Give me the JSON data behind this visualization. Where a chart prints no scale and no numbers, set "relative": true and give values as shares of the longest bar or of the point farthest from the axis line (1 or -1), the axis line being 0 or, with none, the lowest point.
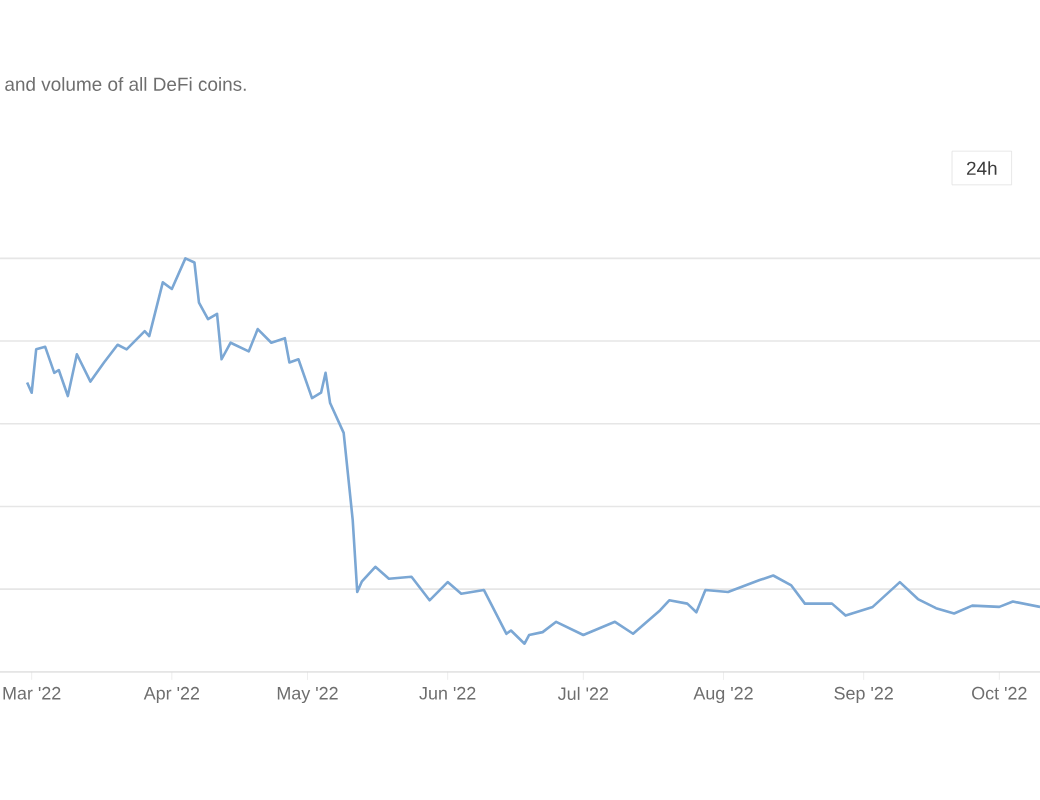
{
  "chart_data": {
    "type": "line",
    "subtitle": "and volume of all DeFi coins.",
    "annotations": [
      "24h"
    ],
    "relative": true,
    "grid": "y",
    "marker": "none",
    "line_style": "solid",
    "xlim": [
      "2022-02-22",
      "2022-10-10"
    ],
    "xticks": [
      {
        "value": "2022-03-01",
        "label": "Mar '22"
      },
      {
        "value": "2022-04-01",
        "label": "Apr '22"
      },
      {
        "value": "2022-05-01",
        "label": "May '22"
      },
      {
        "value": "2022-06-01",
        "label": "Jun '22"
      },
      {
        "value": "2022-07-01",
        "label": "Jul '22"
      },
      {
        "value": "2022-08-01",
        "label": "Aug '22"
      },
      {
        "value": "2022-09-01",
        "label": "Sep '22"
      },
      {
        "value": "2022-10-01",
        "label": "Oct '22"
      }
    ],
    "x": [
      "2022-02-28",
      "2022-03-01",
      "2022-03-02",
      "2022-03-04",
      "2022-03-06",
      "2022-03-07",
      "2022-03-09",
      "2022-03-11",
      "2022-03-14",
      "2022-03-17",
      "2022-03-20",
      "2022-03-22",
      "2022-03-26",
      "2022-03-27",
      "2022-03-30",
      "2022-04-01",
      "2022-04-04",
      "2022-04-06",
      "2022-04-07",
      "2022-04-09",
      "2022-04-11",
      "2022-04-12",
      "2022-04-14",
      "2022-04-18",
      "2022-04-20",
      "2022-04-23",
      "2022-04-26",
      "2022-04-27",
      "2022-04-29",
      "2022-05-02",
      "2022-05-04",
      "2022-05-05",
      "2022-05-06",
      "2022-05-09",
      "2022-05-11",
      "2022-05-12",
      "2022-05-13",
      "2022-05-16",
      "2022-05-19",
      "2022-05-24",
      "2022-05-28",
      "2022-06-01",
      "2022-06-04",
      "2022-06-09",
      "2022-06-14",
      "2022-06-15",
      "2022-06-18",
      "2022-06-19",
      "2022-06-22",
      "2022-06-25",
      "2022-07-01",
      "2022-07-08",
      "2022-07-12",
      "2022-07-18",
      "2022-07-20",
      "2022-07-24",
      "2022-07-26",
      "2022-07-28",
      "2022-08-02",
      "2022-08-09",
      "2022-08-12",
      "2022-08-16",
      "2022-08-19",
      "2022-08-25",
      "2022-08-28",
      "2022-09-03",
      "2022-09-09",
      "2022-09-13",
      "2022-09-17",
      "2022-09-21",
      "2022-09-25",
      "2022-10-01",
      "2022-10-04",
      "2022-10-10"
    ],
    "series": [
      {
        "color": "#7ba7d4",
        "values": [
          0.7,
          0.675,
          0.78,
          0.786,
          0.723,
          0.73,
          0.667,
          0.768,
          0.702,
          0.748,
          0.791,
          0.78,
          0.824,
          0.812,
          0.942,
          0.926,
          1.0,
          0.99,
          0.893,
          0.853,
          0.866,
          0.756,
          0.796,
          0.775,
          0.829,
          0.796,
          0.807,
          0.748,
          0.756,
          0.662,
          0.675,
          0.723,
          0.65,
          0.578,
          0.367,
          0.193,
          0.218,
          0.254,
          0.225,
          0.23,
          0.173,
          0.217,
          0.189,
          0.198,
          0.092,
          0.1,
          0.068,
          0.089,
          0.096,
          0.121,
          0.089,
          0.121,
          0.092,
          0.149,
          0.173,
          0.165,
          0.144,
          0.198,
          0.193,
          0.222,
          0.233,
          0.209,
          0.165,
          0.165,
          0.136,
          0.157,
          0.217,
          0.176,
          0.154,
          0.141,
          0.16,
          0.157,
          0.17,
          0.157
        ]
      }
    ]
  }
}
